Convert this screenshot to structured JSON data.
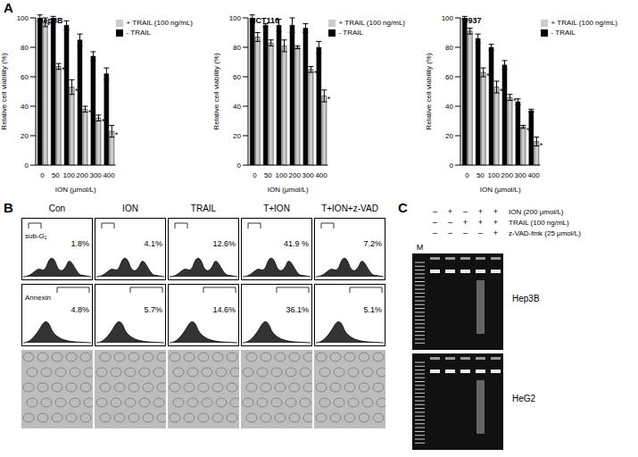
{
  "panel_labels": [
    "A",
    "B",
    "C"
  ],
  "chart_data": [
    {
      "type": "bar",
      "title": "Hep3B",
      "x_label": "ION (μmol/L)",
      "y_label": "Relative cell viability (%)",
      "categories": [
        "0",
        "50",
        "100",
        "200",
        "300",
        "400"
      ],
      "ylim": [
        0,
        100
      ],
      "yticks": [
        0,
        20,
        40,
        60,
        80,
        100
      ],
      "legend": "top-right",
      "series": [
        {
          "name": "- TRAIL",
          "color": "#000000",
          "values": [
            100,
            100,
            95,
            85,
            74,
            62
          ],
          "errors": [
            2,
            1,
            3,
            4,
            3,
            4
          ]
        },
        {
          "name": "+ TRAIL (100 ng/mL)",
          "color": "#cccccc",
          "values": [
            97,
            67,
            53,
            38,
            32,
            23
          ],
          "errors": [
            3,
            2,
            5,
            2,
            2,
            4
          ],
          "significance": [
            null,
            "*",
            "*",
            "*",
            "*",
            "*"
          ]
        }
      ]
    },
    {
      "type": "bar",
      "title": "HCT116",
      "x_label": "ION (μmol/L)",
      "y_label": "Relative cell viability (%)",
      "categories": [
        "0",
        "50",
        "100",
        "200",
        "300",
        "400"
      ],
      "ylim": [
        0,
        100
      ],
      "yticks": [
        0,
        20,
        40,
        60,
        80,
        100
      ],
      "legend": "top-right",
      "series": [
        {
          "name": "- TRAIL",
          "color": "#000000",
          "values": [
            100,
            95,
            95,
            95,
            93,
            80
          ],
          "errors": [
            2,
            1,
            4,
            5,
            3,
            4
          ]
        },
        {
          "name": "+ TRAIL (100 ng/mL)",
          "color": "#cccccc",
          "values": [
            87,
            83,
            81,
            80,
            65,
            47
          ],
          "errors": [
            3,
            2,
            4,
            1,
            2,
            4
          ],
          "significance": [
            null,
            null,
            null,
            null,
            "*",
            "*"
          ]
        }
      ]
    },
    {
      "type": "bar",
      "title": "U937",
      "x_label": "ION (μmol/L)",
      "y_label": "Relative cell viability (%)",
      "categories": [
        "0",
        "50",
        "100",
        "200",
        "300",
        "400"
      ],
      "ylim": [
        0,
        100
      ],
      "yticks": [
        0,
        20,
        40,
        60,
        80,
        100
      ],
      "legend": "top-right",
      "series": [
        {
          "name": "- TRAIL",
          "color": "#000000",
          "values": [
            100,
            86,
            80,
            68,
            43,
            37
          ],
          "errors": [
            1,
            3,
            2,
            3,
            2,
            1
          ]
        },
        {
          "name": "+ TRAIL (100 ng/mL)",
          "color": "#cccccc",
          "values": [
            91,
            63,
            53,
            46,
            26,
            16
          ],
          "errors": [
            2,
            3,
            4,
            2,
            1,
            3
          ],
          "significance": [
            null,
            "*",
            "*",
            "*",
            "*",
            "*"
          ]
        }
      ]
    }
  ],
  "flow_cytometry": {
    "row_labels": [
      "sub-G₁",
      "Annexin"
    ],
    "columns": [
      {
        "title": "Con",
        "sub_g1": "1.8%",
        "annexin": "4.8%"
      },
      {
        "title": "ION",
        "sub_g1": "4.1%",
        "annexin": "5.7%"
      },
      {
        "title": "TRAIL",
        "sub_g1": "12.6%",
        "annexin": "14.6%"
      },
      {
        "title": "T+ION",
        "sub_g1": "41.9 %",
        "annexin": "36.1%"
      },
      {
        "title": "T+ION+z-VAD",
        "sub_g1": "7.2%",
        "annexin": "5.1%"
      }
    ]
  },
  "gel": {
    "marker_lane": "M",
    "treatments": [
      {
        "label": "ION (200 μmol/L)",
        "signs": [
          "–",
          "+",
          "–",
          "+",
          "+"
        ]
      },
      {
        "label": "TRAIL (100 ng/mL)",
        "signs": [
          "–",
          "–",
          "+",
          "+",
          "+"
        ]
      },
      {
        "label": "z-VAD-fmk (25 μmol/L)",
        "signs": [
          "–",
          "–",
          "–",
          "–",
          "+"
        ]
      }
    ],
    "cell_lines": [
      "Hep3B",
      "HeG2"
    ]
  }
}
